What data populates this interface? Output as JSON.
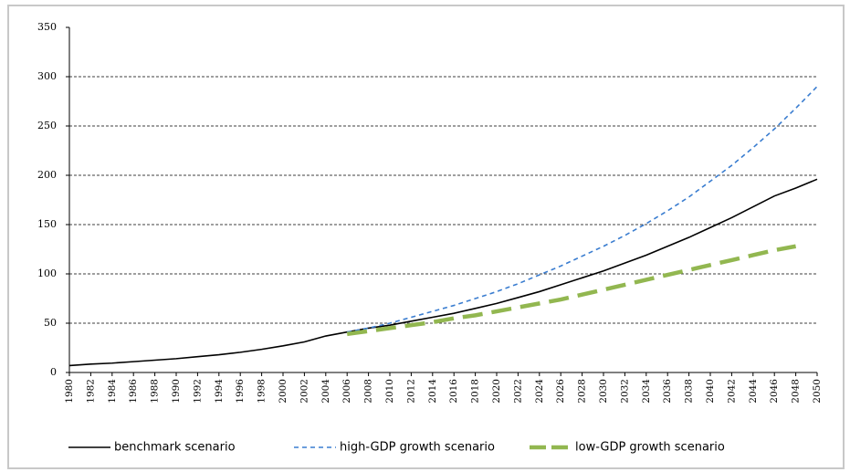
{
  "chart_data": {
    "type": "line",
    "x": [
      1980,
      1982,
      1984,
      1986,
      1988,
      1990,
      1992,
      1994,
      1996,
      1998,
      2000,
      2002,
      2004,
      2006,
      2008,
      2010,
      2012,
      2014,
      2016,
      2018,
      2020,
      2022,
      2024,
      2026,
      2028,
      2030,
      2032,
      2034,
      2036,
      2038,
      2040,
      2042,
      2044,
      2046,
      2048,
      2050
    ],
    "xlim": [
      1980,
      2050
    ],
    "xticks": [
      1980,
      1982,
      1984,
      1986,
      1988,
      1990,
      1992,
      1994,
      1996,
      1998,
      2000,
      2002,
      2004,
      2006,
      2008,
      2010,
      2012,
      2014,
      2016,
      2018,
      2020,
      2022,
      2024,
      2026,
      2028,
      2030,
      2032,
      2034,
      2036,
      2038,
      2040,
      2042,
      2044,
      2046,
      2048,
      2050
    ],
    "ylim": [
      0,
      350
    ],
    "yticks": [
      0,
      50,
      100,
      150,
      200,
      250,
      300,
      350
    ],
    "grid": true,
    "legend": "bottom",
    "series": [
      {
        "name": "benchmark scenario",
        "color": "#000000",
        "line_style": "solid",
        "values": [
          7,
          8.5,
          9.5,
          11,
          12.5,
          14,
          16,
          18,
          20.5,
          23.5,
          27,
          31,
          37,
          41,
          45,
          48,
          52,
          56,
          60,
          65,
          70,
          76,
          82,
          89,
          96,
          103,
          111,
          119,
          128,
          137,
          147,
          157,
          168,
          179,
          187,
          196
        ]
      },
      {
        "name": "high-GDP growth scenario",
        "color": "#3a7dd0",
        "line_style": "dashed",
        "values": [
          null,
          null,
          null,
          null,
          null,
          null,
          null,
          null,
          null,
          null,
          null,
          null,
          null,
          41,
          45,
          50,
          56,
          62,
          68,
          75,
          82,
          90,
          99,
          108,
          118,
          128,
          139,
          151,
          164,
          178,
          194,
          210,
          228,
          247,
          268,
          290
        ]
      },
      {
        "name": "low-GDP growth scenario",
        "color": "#92b750",
        "line_style": "long-dash",
        "values": [
          null,
          null,
          null,
          null,
          null,
          null,
          null,
          null,
          null,
          null,
          null,
          null,
          null,
          39,
          42,
          45,
          48,
          51,
          55,
          58,
          62,
          66,
          70,
          74,
          79,
          84,
          89,
          94,
          99,
          104,
          109,
          114,
          119,
          124,
          128,
          null
        ]
      }
    ]
  }
}
